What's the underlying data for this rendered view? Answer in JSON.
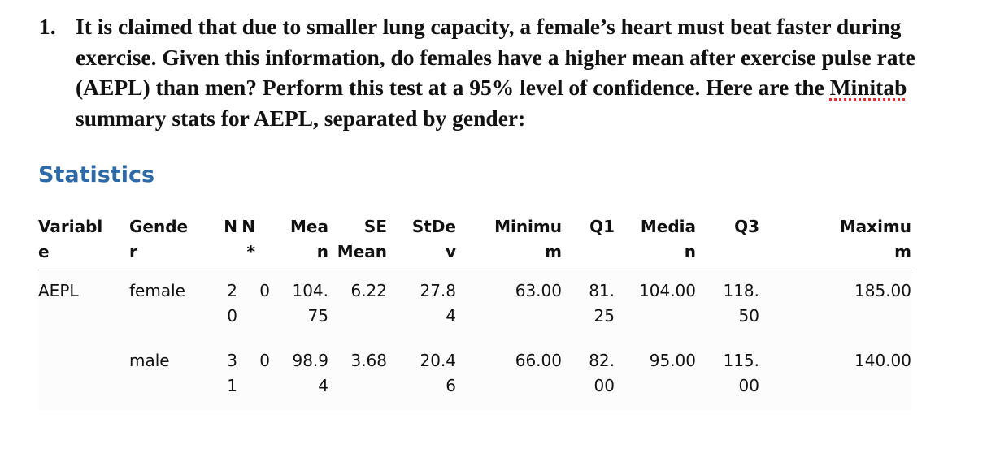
{
  "question": {
    "number": "1.",
    "text_before": "It is claimed that due to smaller lung capacity, a female’s heart must beat faster during exercise.  Given this information, do females have a higher mean after exercise pulse rate (AEPL)  than men?  Perform this test at a 95% level of confidence. Here are the ",
    "spellcheck_word": "Minitab",
    "text_after": " summary stats for AEPL, separated by gender:"
  },
  "section_title": "Statistics",
  "table": {
    "header": [
      "Variable",
      "Gender",
      "N",
      "N*",
      "Mean",
      "SE Mean",
      "StDev",
      "Minimum",
      "Q1",
      "Median",
      "Q3",
      "Maximum"
    ],
    "rows": [
      [
        "AEPL",
        "female",
        "20",
        "0",
        "104.75",
        "6.22",
        "27.84",
        "63.00",
        "81.25",
        "104.00",
        "118.50",
        "185.00"
      ],
      [
        null,
        "male",
        "31",
        "0",
        "98.94",
        "3.68",
        "20.46",
        "66.00",
        "82.00",
        "95.00",
        "115.00",
        "140.00"
      ]
    ]
  }
}
